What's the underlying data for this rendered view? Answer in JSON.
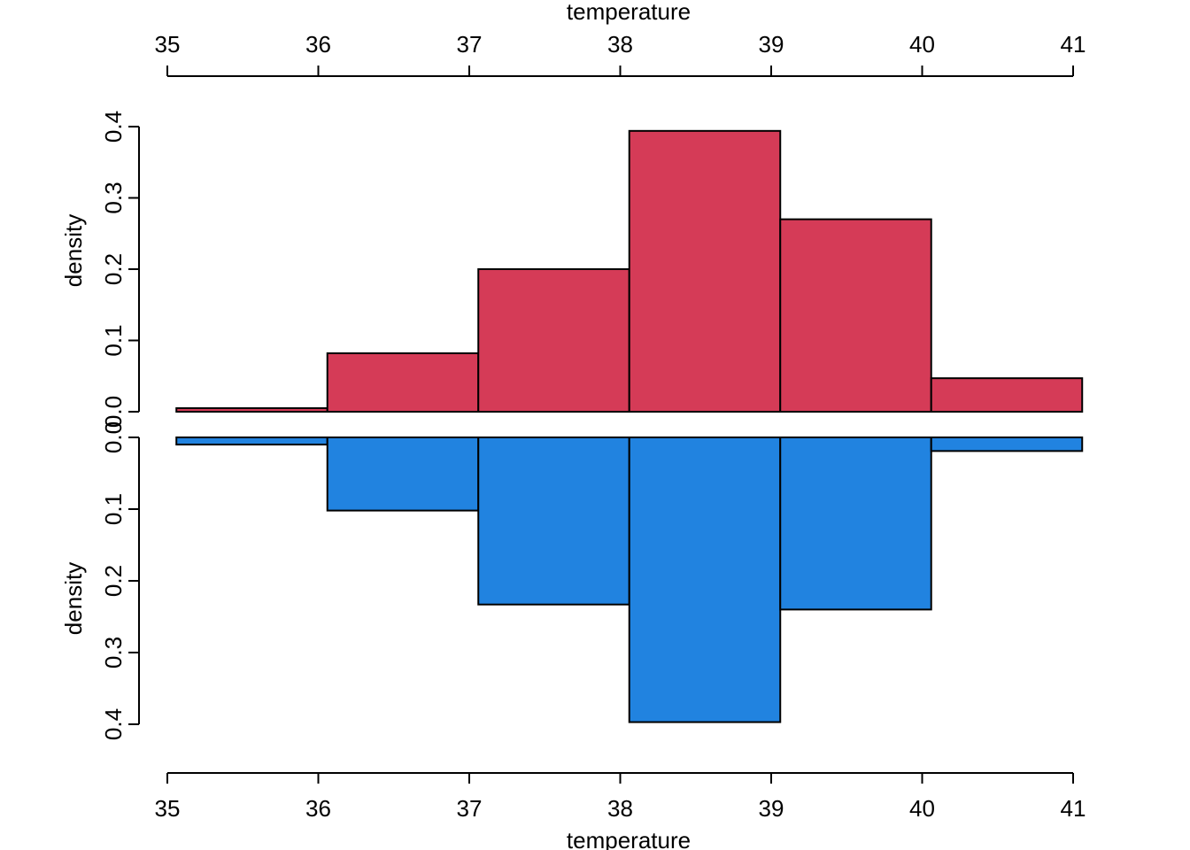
{
  "chart_data": {
    "type": "bar",
    "orientation": "mirrored",
    "x_axis": {
      "label": "temperature",
      "ticks": [
        35,
        36,
        37,
        38,
        39,
        40,
        41
      ],
      "range": [
        35,
        41
      ]
    },
    "bins": [
      {
        "from": 35.06,
        "to": 36.06
      },
      {
        "from": 36.06,
        "to": 37.06
      },
      {
        "from": 37.06,
        "to": 38.06
      },
      {
        "from": 38.06,
        "to": 39.06
      },
      {
        "from": 39.06,
        "to": 40.06
      },
      {
        "from": 40.06,
        "to": 41.06
      }
    ],
    "series": [
      {
        "position": "top",
        "color": "#D53B57",
        "ylabel": "density",
        "ylim": [
          0,
          0.4
        ],
        "yticks": [
          "0.0",
          "0.1",
          "0.2",
          "0.3",
          "0.4"
        ],
        "values": [
          0.005,
          0.082,
          0.2,
          0.394,
          0.27,
          0.047
        ]
      },
      {
        "position": "bottom",
        "color": "#2183E0",
        "ylabel": "density",
        "ylim": [
          0,
          0.4
        ],
        "yticks": [
          "0.0",
          "0.1",
          "0.2",
          "0.3",
          "0.4"
        ],
        "values": [
          0.01,
          0.102,
          0.233,
          0.397,
          0.24,
          0.019
        ]
      }
    ]
  }
}
